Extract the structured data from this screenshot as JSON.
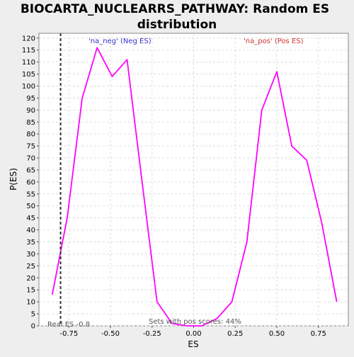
{
  "chart_data": {
    "type": "line",
    "title_line1": "BIOCARTA_NUCLEARRS_PATHWAY: Random ES",
    "title_line2": "distribution",
    "xlabel": "ES",
    "ylabel": "P(ES)",
    "xlim": [
      -0.93,
      0.93
    ],
    "ylim": [
      0,
      122
    ],
    "x_ticks": [
      {
        "value": -0.75,
        "label": "-0.75"
      },
      {
        "value": -0.5,
        "label": "-0.50"
      },
      {
        "value": -0.25,
        "label": "-0.25"
      },
      {
        "value": 0.0,
        "label": "0.00"
      },
      {
        "value": 0.25,
        "label": "0.25"
      },
      {
        "value": 0.5,
        "label": "0.50"
      },
      {
        "value": 0.75,
        "label": "0.75"
      }
    ],
    "y_ticks": [
      0,
      5,
      10,
      15,
      20,
      25,
      30,
      35,
      40,
      45,
      50,
      55,
      60,
      65,
      70,
      75,
      80,
      85,
      90,
      95,
      100,
      105,
      110,
      115,
      120
    ],
    "grid": true,
    "series": [
      {
        "color": "#ff00ff",
        "x": [
          -0.85,
          -0.76,
          -0.67,
          -0.58,
          -0.49,
          -0.4,
          -0.31,
          -0.22,
          -0.13,
          -0.04,
          0.05,
          0.14,
          0.23,
          0.32,
          0.41,
          0.5,
          0.59,
          0.68,
          0.77,
          0.86
        ],
        "y": [
          13,
          45,
          95,
          116,
          104,
          111,
          60,
          10,
          1,
          0,
          0,
          3,
          10,
          35,
          90,
          106,
          75,
          69,
          43,
          10
        ]
      }
    ],
    "real_es": {
      "value": -0.8,
      "label": "Real ES -0.8",
      "color": "#333333"
    },
    "annotations": {
      "neg_label": "'na_neg' (Neg ES)",
      "neg_color": "#3333cc",
      "pos_label": "'na_pos' (Pos ES)",
      "pos_color": "#cc3333",
      "pos_scores": "Sets with pos scores: 44%"
    }
  }
}
